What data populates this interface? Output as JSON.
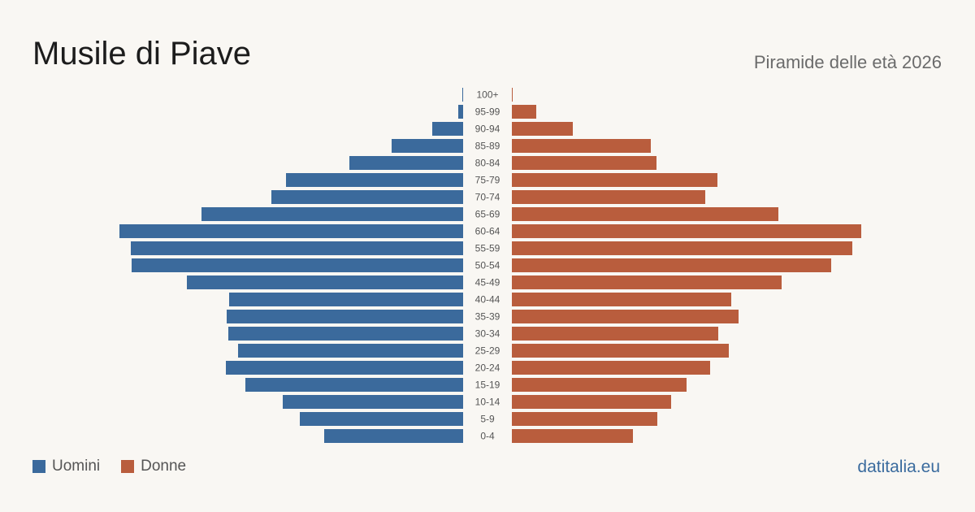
{
  "title": "Musile di Piave",
  "subtitle": "Piramide delle età 2026",
  "brand": "datitalia.eu",
  "legend": {
    "men": "Uomini",
    "women": "Donne"
  },
  "colors": {
    "men": "#3b6a9c",
    "women": "#b95d3d"
  },
  "chart_data": {
    "type": "bar",
    "orientation": "horizontal-pyramid",
    "categories": [
      "100+",
      "95-99",
      "90-94",
      "85-89",
      "80-84",
      "75-79",
      "70-74",
      "65-69",
      "60-64",
      "55-59",
      "50-54",
      "45-49",
      "40-44",
      "35-39",
      "30-34",
      "25-29",
      "20-24",
      "15-19",
      "10-14",
      "5-9",
      "0-4"
    ],
    "series": [
      {
        "name": "Uomini",
        "values": [
          1,
          6,
          38,
          88,
          140,
          218,
          236,
          322,
          423,
          409,
          408,
          340,
          288,
          291,
          289,
          277,
          292,
          268,
          222,
          201,
          171
        ]
      },
      {
        "name": "Donne",
        "values": [
          1,
          30,
          75,
          171,
          178,
          253,
          238,
          328,
          430,
          419,
          393,
          332,
          270,
          279,
          254,
          267,
          244,
          215,
          196,
          179,
          149
        ]
      }
    ],
    "grid": false,
    "legend_position": "bottom-left"
  }
}
